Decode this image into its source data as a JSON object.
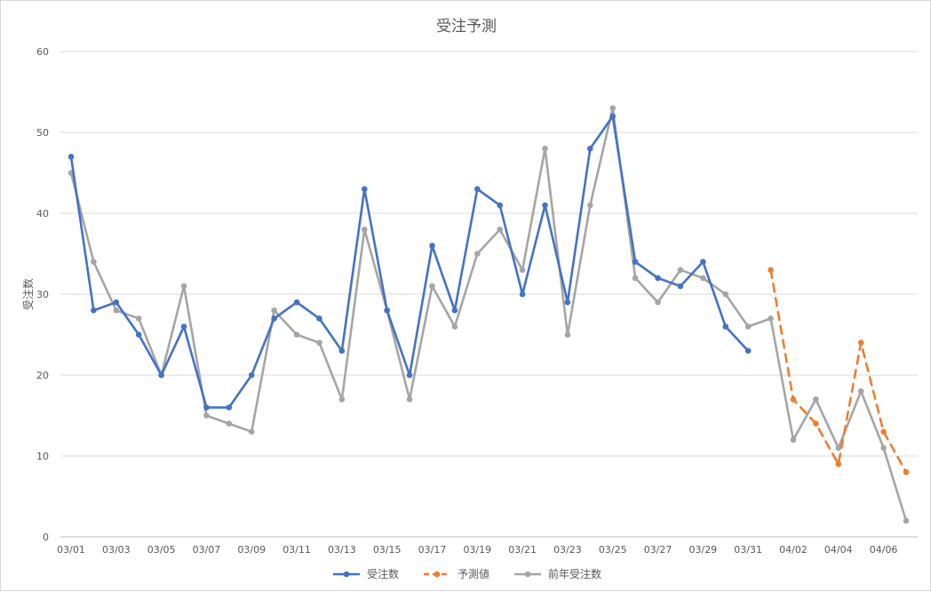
{
  "chart_data": {
    "type": "line",
    "title": "受注予測",
    "xlabel": "",
    "ylabel": "受注数",
    "ylim": [
      0,
      60
    ],
    "yticks": [
      0,
      10,
      20,
      30,
      40,
      50,
      60
    ],
    "grid": true,
    "legend_position": "bottom",
    "categories": [
      "03/01",
      "03/02",
      "03/03",
      "03/04",
      "03/05",
      "03/06",
      "03/07",
      "03/08",
      "03/09",
      "03/10",
      "03/11",
      "03/12",
      "03/13",
      "03/14",
      "03/15",
      "03/16",
      "03/17",
      "03/18",
      "03/19",
      "03/20",
      "03/21",
      "03/22",
      "03/23",
      "03/24",
      "03/25",
      "03/26",
      "03/27",
      "03/28",
      "03/29",
      "03/30",
      "03/31",
      "04/01",
      "04/02",
      "04/03",
      "04/04",
      "04/05",
      "04/06",
      "04/07"
    ],
    "tick_labels": [
      "03/01",
      "03/03",
      "03/05",
      "03/07",
      "03/09",
      "03/11",
      "03/13",
      "03/15",
      "03/17",
      "03/19",
      "03/21",
      "03/23",
      "03/25",
      "03/27",
      "03/29",
      "03/31",
      "04/02",
      "04/04",
      "04/06"
    ],
    "series": [
      {
        "name": "受注数",
        "color": "#4472c4",
        "dashed": false,
        "values": [
          47,
          28,
          29,
          25,
          20,
          26,
          16,
          16,
          20,
          27,
          29,
          27,
          23,
          43,
          28,
          20,
          36,
          28,
          43,
          41,
          30,
          41,
          29,
          48,
          52,
          34,
          32,
          31,
          34,
          26,
          23,
          null,
          null,
          null,
          null,
          null,
          null,
          null
        ]
      },
      {
        "name": "予測値",
        "color": "#ed7d31",
        "dashed": true,
        "values": [
          null,
          null,
          null,
          null,
          null,
          null,
          null,
          null,
          null,
          null,
          null,
          null,
          null,
          null,
          null,
          null,
          null,
          null,
          null,
          null,
          null,
          null,
          null,
          null,
          null,
          null,
          null,
          null,
          null,
          null,
          null,
          33,
          17,
          14,
          9,
          24,
          13,
          8
        ]
      },
      {
        "name": "前年受注数",
        "color": "#a5a5a5",
        "dashed": false,
        "values": [
          45,
          34,
          28,
          27,
          20,
          31,
          15,
          14,
          13,
          28,
          25,
          24,
          17,
          38,
          28,
          17,
          31,
          26,
          35,
          38,
          33,
          48,
          25,
          41,
          53,
          32,
          29,
          33,
          32,
          30,
          26,
          27,
          12,
          17,
          11,
          18,
          11,
          2
        ]
      }
    ]
  }
}
